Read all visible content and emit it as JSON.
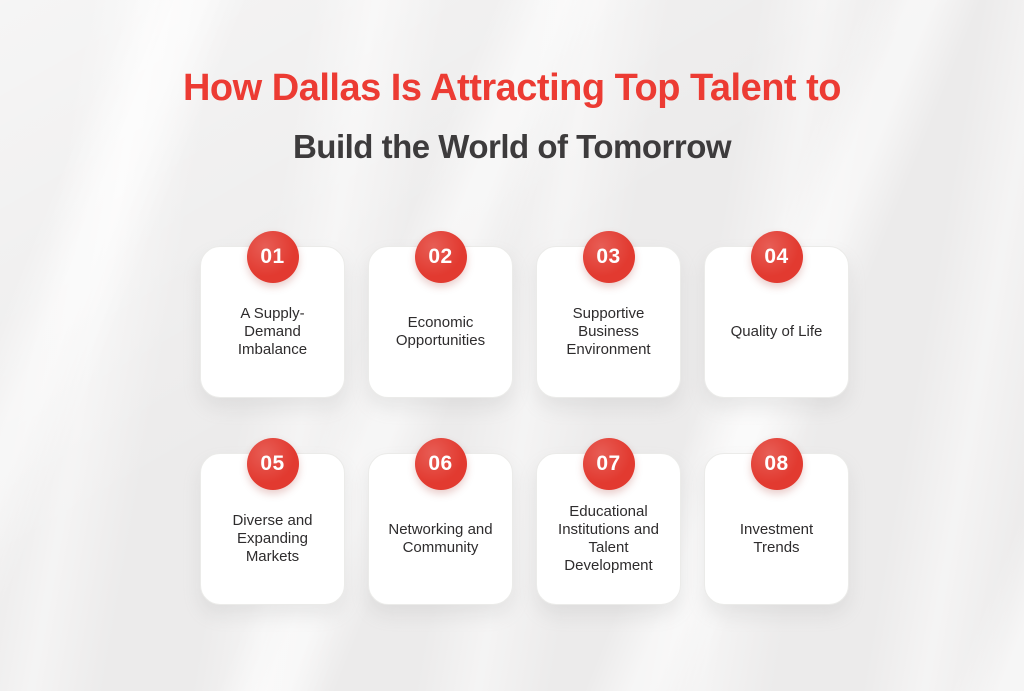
{
  "title": {
    "line1": "How Dallas Is Attracting Top Talent to",
    "line2": "Build the World of Tomorrow"
  },
  "colors": {
    "title_red": "#ec3b33",
    "title_dark": "#3d3b3c",
    "badge_red": "#e23a30",
    "card_text": "#2e2c2d",
    "background": "#efeeee",
    "card_bg": "#ffffff"
  },
  "cards": [
    {
      "number": "01",
      "label": "A Supply-\nDemand\nImbalance"
    },
    {
      "number": "02",
      "label": "Economic\nOpportunities"
    },
    {
      "number": "03",
      "label": "Supportive\nBusiness\nEnvironment"
    },
    {
      "number": "04",
      "label": "Quality of Life"
    },
    {
      "number": "05",
      "label": "Diverse and\nExpanding\nMarkets"
    },
    {
      "number": "06",
      "label": "Networking and\nCommunity"
    },
    {
      "number": "07",
      "label": "Educational\nInstitutions and\nTalent\nDevelopment"
    },
    {
      "number": "08",
      "label": "Investment\nTrends"
    }
  ]
}
